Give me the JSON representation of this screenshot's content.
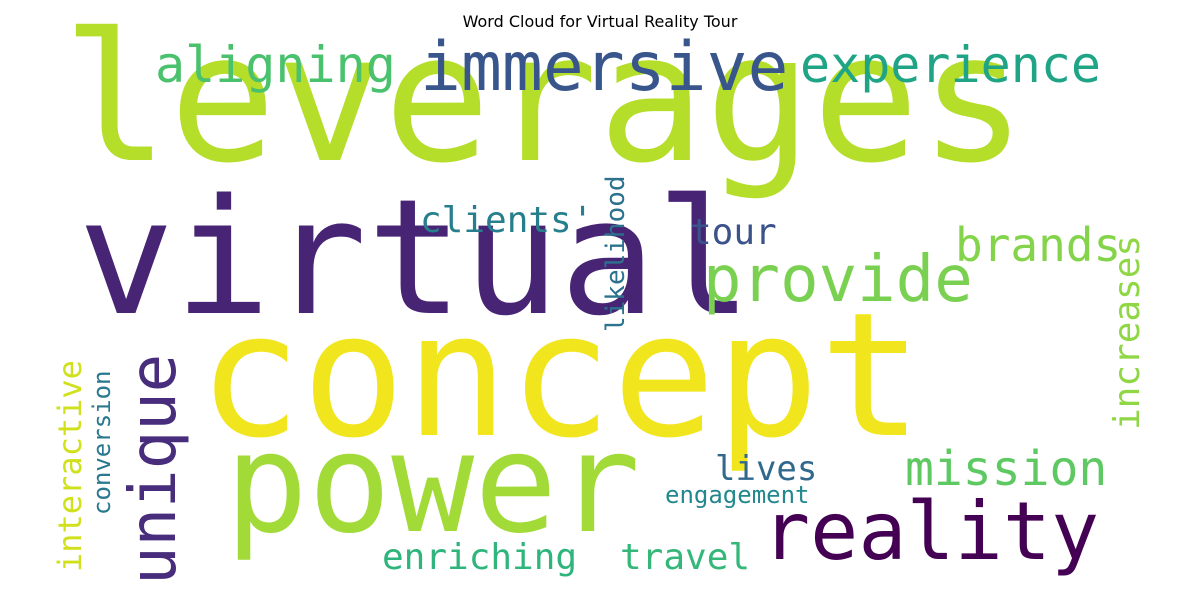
{
  "title": "Word Cloud for Virtual Reality Tour",
  "words": {
    "leverages": {
      "text": "leverages",
      "color": "#b5de2b"
    },
    "virtual": {
      "text": "virtual",
      "color": "#482475"
    },
    "concept": {
      "text": "concept",
      "color": "#f1e51d"
    },
    "power": {
      "text": "power",
      "color": "#a2da37"
    },
    "immersive": {
      "text": "immersive",
      "color": "#39568c"
    },
    "aligning": {
      "text": "aligning",
      "color": "#4ac16d"
    },
    "experience": {
      "text": "experience",
      "color": "#20a486"
    },
    "provide": {
      "text": "provide",
      "color": "#7ad151"
    },
    "brands": {
      "text": "brands",
      "color": "#84d44b"
    },
    "reality": {
      "text": "reality",
      "color": "#440154"
    },
    "unique": {
      "text": "unique",
      "color": "#472d7b"
    },
    "mission": {
      "text": "mission",
      "color": "#5ec962"
    },
    "clients": {
      "text": "clients'",
      "color": "#277f8e"
    },
    "tour": {
      "text": "tour",
      "color": "#3b528b"
    },
    "likelihood": {
      "text": "likelihood",
      "color": "#2c728e"
    },
    "increases": {
      "text": "increases",
      "color": "#8fd744"
    },
    "interactive": {
      "text": "interactive",
      "color": "#d0e11c"
    },
    "conversion": {
      "text": "conversion",
      "color": "#2a788e"
    },
    "lives": {
      "text": "lives",
      "color": "#31688e"
    },
    "engagement": {
      "text": "engagement",
      "color": "#23888e"
    },
    "enriching": {
      "text": "enriching",
      "color": "#2fb47c"
    },
    "travel": {
      "text": "travel",
      "color": "#35b779"
    }
  }
}
